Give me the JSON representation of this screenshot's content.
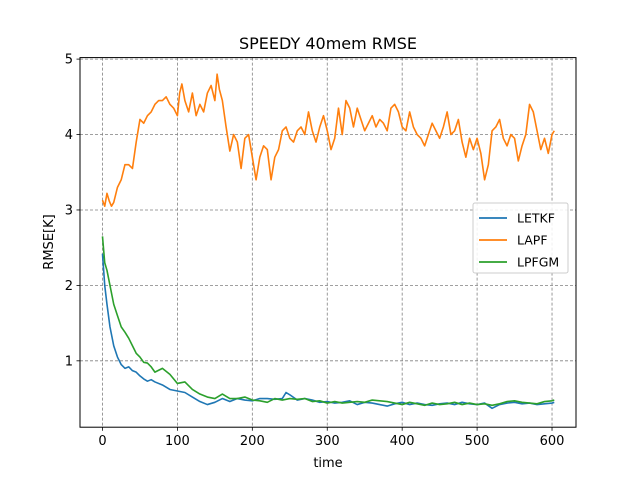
{
  "chart_data": {
    "type": "line",
    "title": "SPEEDY 40mem RMSE",
    "xlabel": "time",
    "ylabel": "RMSE[K]",
    "xlim": [
      -30,
      632
    ],
    "ylim": [
      0.12,
      5.02
    ],
    "xticks": [
      0,
      100,
      200,
      300,
      400,
      500,
      600
    ],
    "yticks": [
      1,
      2,
      3,
      4,
      5
    ],
    "grid": true,
    "legend_position": "right",
    "series": [
      {
        "name": "LETKF",
        "color": "#1f77b4",
        "x": [
          0,
          3,
          6,
          10,
          15,
          20,
          25,
          30,
          35,
          40,
          45,
          50,
          55,
          60,
          65,
          70,
          80,
          90,
          100,
          110,
          120,
          130,
          140,
          150,
          160,
          170,
          180,
          190,
          200,
          210,
          220,
          230,
          240,
          245,
          250,
          260,
          270,
          280,
          290,
          300,
          310,
          320,
          330,
          340,
          350,
          360,
          370,
          380,
          390,
          400,
          410,
          420,
          430,
          440,
          450,
          460,
          470,
          480,
          490,
          500,
          510,
          520,
          530,
          540,
          550,
          560,
          570,
          580,
          590,
          600,
          603
        ],
        "y": [
          2.42,
          2.0,
          1.75,
          1.45,
          1.2,
          1.05,
          0.95,
          0.9,
          0.92,
          0.87,
          0.85,
          0.8,
          0.76,
          0.73,
          0.75,
          0.72,
          0.68,
          0.62,
          0.6,
          0.58,
          0.52,
          0.46,
          0.42,
          0.45,
          0.5,
          0.46,
          0.5,
          0.48,
          0.47,
          0.5,
          0.5,
          0.49,
          0.5,
          0.58,
          0.55,
          0.48,
          0.5,
          0.48,
          0.45,
          0.46,
          0.44,
          0.45,
          0.47,
          0.42,
          0.45,
          0.44,
          0.42,
          0.4,
          0.43,
          0.45,
          0.42,
          0.44,
          0.42,
          0.41,
          0.43,
          0.44,
          0.42,
          0.45,
          0.43,
          0.42,
          0.44,
          0.37,
          0.42,
          0.44,
          0.45,
          0.43,
          0.44,
          0.42,
          0.43,
          0.44,
          0.45
        ]
      },
      {
        "name": "LAPF",
        "color": "#ff7f0e",
        "x": [
          0,
          3,
          6,
          9,
          12,
          15,
          20,
          25,
          30,
          35,
          40,
          45,
          50,
          55,
          60,
          65,
          70,
          75,
          80,
          85,
          90,
          95,
          100,
          103,
          106,
          110,
          115,
          120,
          125,
          130,
          135,
          140,
          145,
          150,
          153,
          156,
          160,
          165,
          170,
          175,
          180,
          185,
          190,
          195,
          200,
          205,
          210,
          215,
          220,
          225,
          230,
          235,
          240,
          245,
          250,
          255,
          260,
          265,
          270,
          275,
          280,
          285,
          290,
          295,
          300,
          305,
          310,
          315,
          320,
          325,
          330,
          335,
          340,
          345,
          350,
          355,
          360,
          365,
          370,
          375,
          380,
          385,
          390,
          395,
          400,
          405,
          410,
          415,
          420,
          425,
          430,
          435,
          440,
          445,
          450,
          455,
          460,
          465,
          470,
          475,
          480,
          485,
          490,
          495,
          500,
          505,
          510,
          515,
          520,
          525,
          530,
          535,
          540,
          545,
          550,
          555,
          560,
          565,
          570,
          575,
          580,
          585,
          590,
          595,
          600,
          603
        ],
        "y": [
          3.13,
          3.05,
          3.22,
          3.12,
          3.05,
          3.1,
          3.3,
          3.4,
          3.6,
          3.6,
          3.55,
          3.9,
          4.2,
          4.15,
          4.25,
          4.3,
          4.4,
          4.45,
          4.45,
          4.5,
          4.4,
          4.35,
          4.25,
          4.55,
          4.67,
          4.45,
          4.3,
          4.55,
          4.25,
          4.4,
          4.3,
          4.55,
          4.65,
          4.45,
          4.8,
          4.6,
          4.45,
          4.1,
          3.78,
          4.0,
          3.9,
          3.55,
          3.95,
          4.0,
          3.7,
          3.4,
          3.7,
          3.85,
          3.8,
          3.4,
          3.7,
          3.8,
          4.05,
          4.1,
          3.95,
          3.9,
          4.05,
          4.1,
          4.0,
          4.3,
          4.05,
          3.9,
          4.1,
          4.25,
          4.05,
          3.8,
          3.95,
          4.35,
          4.0,
          4.45,
          4.35,
          4.1,
          4.35,
          4.2,
          4.05,
          4.15,
          4.25,
          4.1,
          4.2,
          4.15,
          4.05,
          4.35,
          4.4,
          4.3,
          4.1,
          4.05,
          4.3,
          4.1,
          4.0,
          3.95,
          3.85,
          4.0,
          4.15,
          4.05,
          3.95,
          4.1,
          4.3,
          4.0,
          4.05,
          4.2,
          3.9,
          3.7,
          3.95,
          3.8,
          3.95,
          3.75,
          3.4,
          3.6,
          4.05,
          4.1,
          4.2,
          3.95,
          3.85,
          4.0,
          3.95,
          3.65,
          3.85,
          4.0,
          4.4,
          4.3,
          4.05,
          3.8,
          3.95,
          3.75,
          4.0,
          4.05
        ]
      },
      {
        "name": "LPFGM",
        "color": "#2ca02c",
        "x": [
          0,
          3,
          6,
          10,
          15,
          20,
          25,
          30,
          35,
          40,
          45,
          50,
          55,
          60,
          65,
          70,
          80,
          90,
          100,
          110,
          120,
          130,
          140,
          150,
          160,
          170,
          180,
          190,
          200,
          210,
          220,
          230,
          240,
          250,
          260,
          270,
          280,
          290,
          300,
          310,
          320,
          330,
          340,
          350,
          360,
          370,
          380,
          390,
          400,
          410,
          420,
          430,
          440,
          450,
          460,
          470,
          480,
          490,
          500,
          510,
          520,
          530,
          540,
          550,
          560,
          570,
          580,
          590,
          600,
          603
        ],
        "y": [
          2.65,
          2.3,
          2.2,
          2.0,
          1.75,
          1.6,
          1.45,
          1.38,
          1.3,
          1.2,
          1.1,
          1.05,
          0.98,
          0.97,
          0.92,
          0.85,
          0.9,
          0.82,
          0.7,
          0.72,
          0.62,
          0.56,
          0.52,
          0.5,
          0.56,
          0.5,
          0.5,
          0.52,
          0.48,
          0.47,
          0.45,
          0.5,
          0.48,
          0.5,
          0.49,
          0.5,
          0.46,
          0.47,
          0.44,
          0.46,
          0.44,
          0.45,
          0.46,
          0.45,
          0.48,
          0.47,
          0.46,
          0.44,
          0.42,
          0.45,
          0.43,
          0.41,
          0.44,
          0.42,
          0.43,
          0.45,
          0.42,
          0.44,
          0.42,
          0.43,
          0.41,
          0.43,
          0.46,
          0.47,
          0.45,
          0.44,
          0.43,
          0.46,
          0.47,
          0.48
        ]
      }
    ]
  }
}
